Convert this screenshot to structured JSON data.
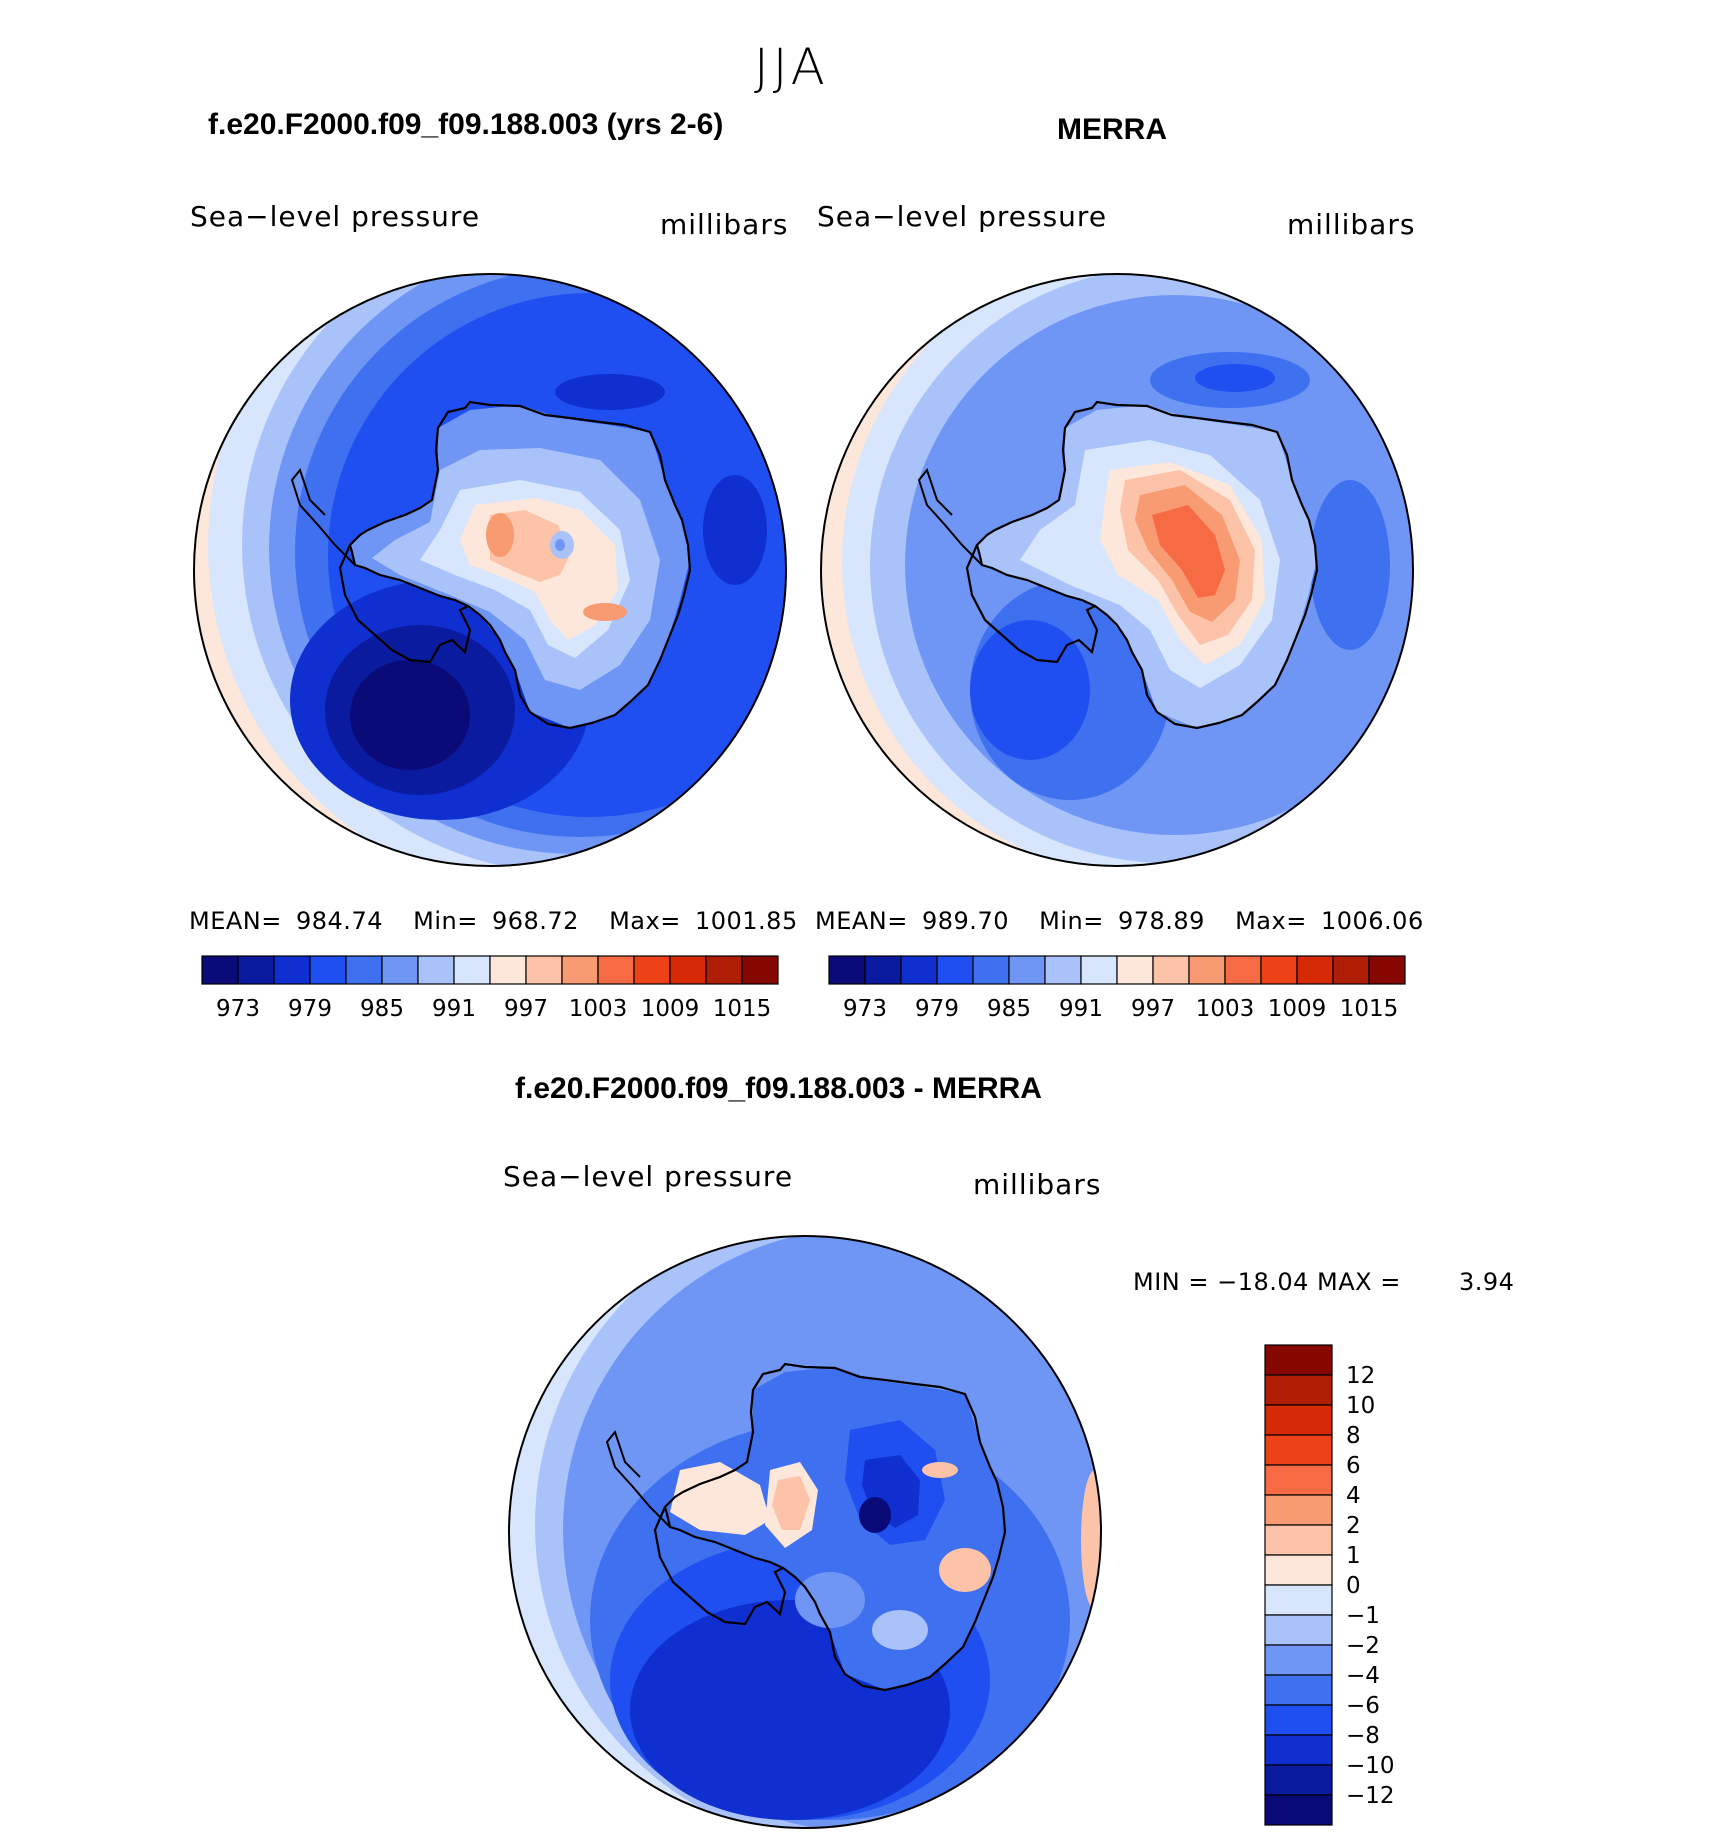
{
  "season": "JJA",
  "panels": {
    "model": {
      "title": "f.e20.F2000.f09_f09.188.003 (yrs 2-6)",
      "left_label": "Sea−level pressure",
      "right_label": "millibars",
      "mean_label": "MEAN=",
      "mean_value": "984.74",
      "min_label": "Min=",
      "min_value": "968.72",
      "max_label": "Max=",
      "max_value": "1001.85"
    },
    "obs": {
      "title": "MERRA",
      "left_label": "Sea−level pressure",
      "right_label": "millibars",
      "mean_label": "MEAN=",
      "mean_value": "989.70",
      "min_label": "Min=",
      "min_value": "978.89",
      "max_label": "Max=",
      "max_value": "1006.06"
    },
    "diff": {
      "title": "f.e20.F2000.f09_f09.188.003 - MERRA",
      "left_label": "Sea−level pressure",
      "right_label": "millibars",
      "minmax_text": "MIN = −18.04 MAX =",
      "max_value": "3.94"
    }
  },
  "chart_data": [
    {
      "type": "heatmap",
      "name": "model",
      "title": "f.e20.F2000.f09_f09.188.003 (yrs 2-6)",
      "variable": "Sea-level pressure",
      "units": "millibars",
      "projection": "south polar stereographic",
      "mean": 984.74,
      "min": 968.72,
      "max": 1001.85,
      "levels": [
        973,
        976,
        979,
        982,
        985,
        988,
        991,
        994,
        997,
        1000,
        1003,
        1006,
        1009,
        1012,
        1015
      ],
      "tick_labels": [
        "973",
        "979",
        "985",
        "991",
        "997",
        "1003",
        "1009",
        "1015"
      ]
    },
    {
      "type": "heatmap",
      "name": "obs",
      "title": "MERRA",
      "variable": "Sea-level pressure",
      "units": "millibars",
      "projection": "south polar stereographic",
      "mean": 989.7,
      "min": 978.89,
      "max": 1006.06,
      "levels": [
        973,
        976,
        979,
        982,
        985,
        988,
        991,
        994,
        997,
        1000,
        1003,
        1006,
        1009,
        1012,
        1015
      ],
      "tick_labels": [
        "973",
        "979",
        "985",
        "991",
        "997",
        "1003",
        "1009",
        "1015"
      ]
    },
    {
      "type": "heatmap",
      "name": "difference",
      "title": "f.e20.F2000.f09_f09.188.003 - MERRA",
      "variable": "Sea-level pressure",
      "units": "millibars",
      "projection": "south polar stereographic",
      "min": -18.04,
      "max": 3.94,
      "levels": [
        -12,
        -10,
        -8,
        -6,
        -4,
        -2,
        -1,
        0,
        1,
        2,
        4,
        6,
        8,
        10,
        12
      ],
      "tick_labels": [
        "12",
        "10",
        "8",
        "6",
        "4",
        "2",
        "1",
        "0",
        "−1",
        "−2",
        "−4",
        "−6",
        "−8",
        "−10",
        "−12"
      ]
    }
  ],
  "colors": {
    "palette": [
      "#0a0a78",
      "#0b1ba0",
      "#0f2fd0",
      "#1f4ff0",
      "#3f70f0",
      "#6f96f5",
      "#a9c3fa",
      "#d7e6fd",
      "#fde7da",
      "#fcc3a8",
      "#f89a72",
      "#f76b44",
      "#ef4118",
      "#d62a06",
      "#b01d05",
      "#860600"
    ]
  }
}
